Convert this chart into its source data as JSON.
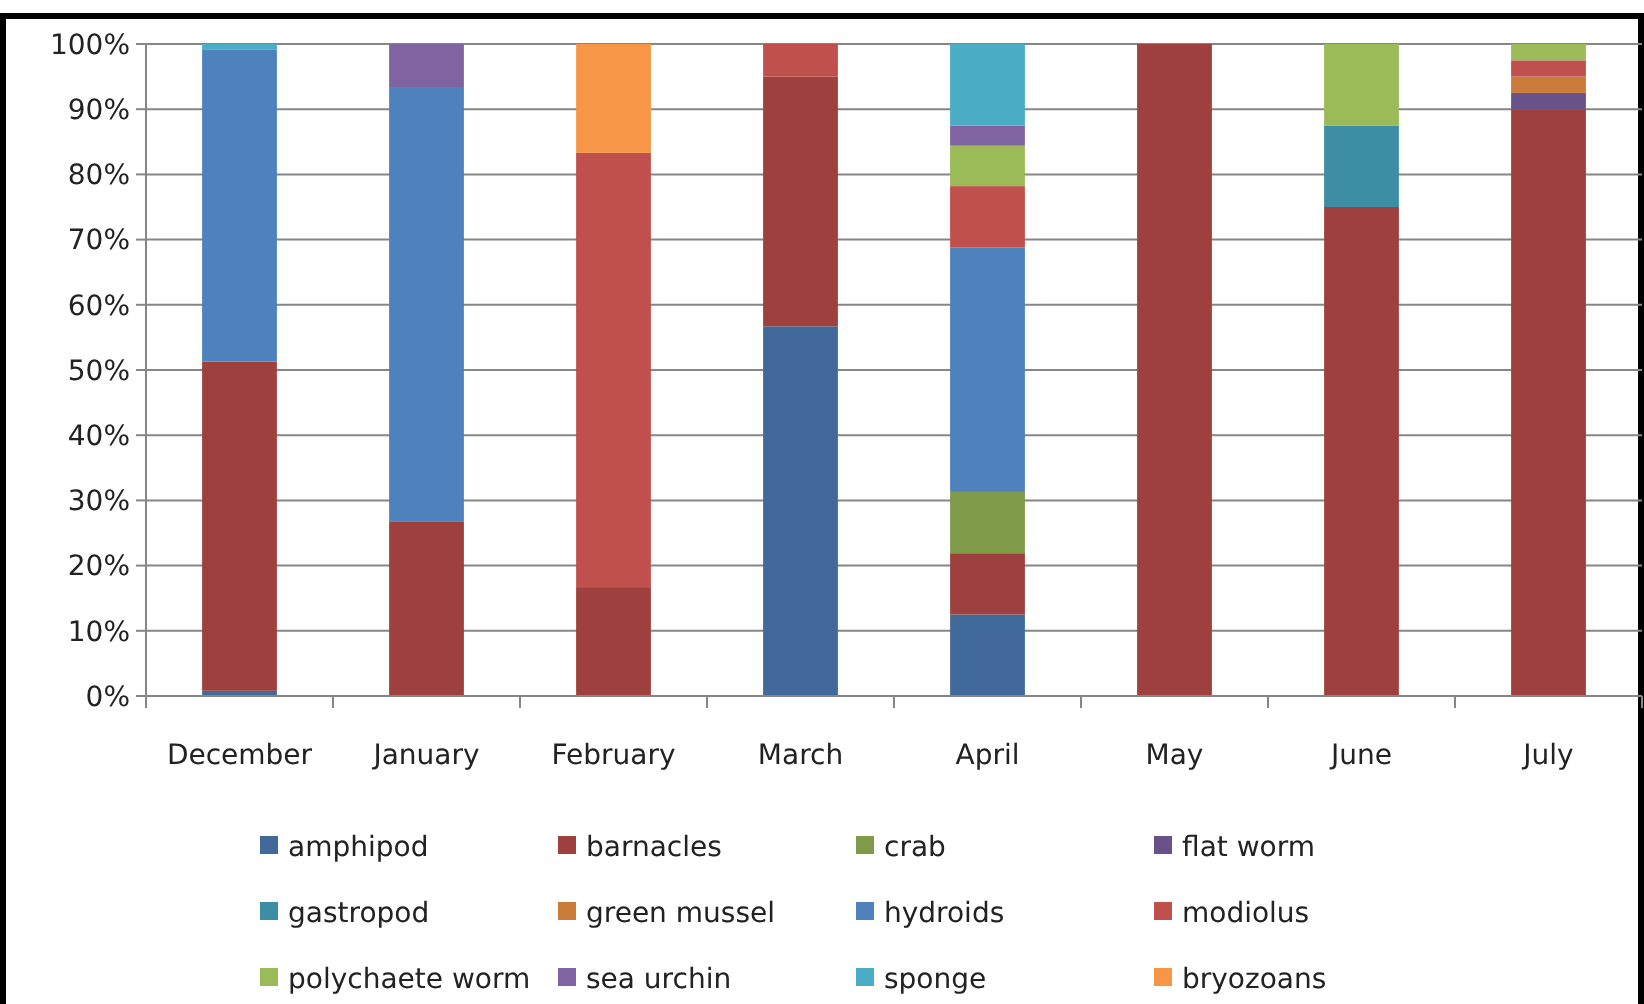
{
  "chart_data": {
    "type": "bar",
    "stacked": true,
    "categories": [
      "December",
      "January",
      "February",
      "March",
      "April",
      "May",
      "June",
      "July"
    ],
    "series": [
      {
        "name": "amphipod",
        "color": "#416a9b",
        "values": [
          0.8,
          null,
          null,
          56.7,
          12.5,
          null,
          null,
          null
        ]
      },
      {
        "name": "barnacles",
        "color": "#9e413e",
        "values": [
          50.5,
          26.7,
          16.7,
          38.3,
          9.4,
          100,
          75,
          90
        ]
      },
      {
        "name": "crab",
        "color": "#7f9a48",
        "values": [
          null,
          null,
          null,
          null,
          9.4,
          null,
          null,
          null
        ]
      },
      {
        "name": "flat worm",
        "color": "#69528a",
        "values": [
          null,
          null,
          null,
          null,
          null,
          null,
          null,
          2.5
        ]
      },
      {
        "name": "gastropod",
        "color": "#3d8ea5",
        "values": [
          null,
          null,
          null,
          null,
          null,
          null,
          12.5,
          null
        ]
      },
      {
        "name": "green mussel",
        "color": "#cb7b3a",
        "values": [
          null,
          null,
          null,
          null,
          null,
          null,
          null,
          2.5
        ]
      },
      {
        "name": "hydroids",
        "color": "#4f81bd",
        "values": [
          47.8,
          66.7,
          null,
          null,
          37.5,
          null,
          null,
          null
        ]
      },
      {
        "name": "modiolus",
        "color": "#c0504d",
        "values": [
          null,
          null,
          66.6,
          5,
          9.4,
          null,
          null,
          2.5
        ]
      },
      {
        "name": "polychaete worm",
        "color": "#9bbb59",
        "values": [
          null,
          null,
          null,
          null,
          6.2,
          null,
          12.5,
          2.5
        ]
      },
      {
        "name": "sea urchin",
        "color": "#8064a2",
        "values": [
          null,
          6.6,
          null,
          null,
          3.1,
          null,
          null,
          null
        ]
      },
      {
        "name": "sponge",
        "color": "#4bacc6",
        "values": [
          0.9,
          null,
          null,
          null,
          12.5,
          null,
          null,
          null
        ]
      },
      {
        "name": "bryozoans",
        "color": "#f79646",
        "values": [
          null,
          null,
          16.7,
          null,
          null,
          null,
          null,
          null
        ]
      }
    ],
    "ylim": [
      0,
      100
    ],
    "yticks": [
      {
        "value": 0,
        "label": "0%"
      },
      {
        "value": 10,
        "label": "10%"
      },
      {
        "value": 20,
        "label": "20%"
      },
      {
        "value": 30,
        "label": "30%"
      },
      {
        "value": 40,
        "label": "40%"
      },
      {
        "value": 50,
        "label": "50%"
      },
      {
        "value": 60,
        "label": "60%"
      },
      {
        "value": 70,
        "label": "70%"
      },
      {
        "value": 80,
        "label": "80%"
      },
      {
        "value": 90,
        "label": "90%"
      },
      {
        "value": 100,
        "label": "100%"
      }
    ],
    "grid": "y",
    "legend": "bottom"
  }
}
